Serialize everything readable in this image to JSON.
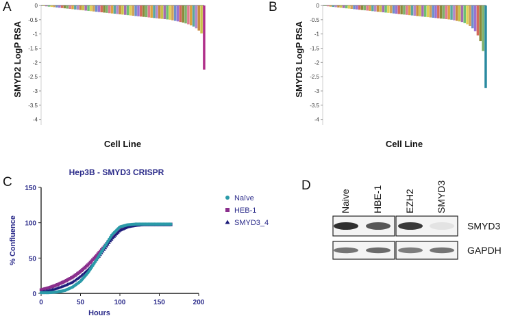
{
  "panels": {
    "a": {
      "letter": "A"
    },
    "b": {
      "letter": "B"
    },
    "c": {
      "letter": "C"
    },
    "d": {
      "letter": "D"
    }
  },
  "chart_data": [
    {
      "panel": "A",
      "type": "bar",
      "title": "",
      "xlabel": "Cell Line",
      "ylabel": "SMYD2 LogP RSA",
      "ylim": [
        -4.2,
        0
      ],
      "yticks": [
        "0",
        "-0.5",
        "-1",
        "-1.5",
        "-2",
        "-2.5",
        "-3",
        "-3.5",
        "-4"
      ],
      "description_values": "ranked waterfall of many cell lines; values fall from ~0 to about -1.0, last bar about -2.25",
      "values": [
        -0.02,
        -0.03,
        -0.04,
        -0.05,
        -0.06,
        -0.07,
        -0.08,
        -0.09,
        -0.1,
        -0.11,
        -0.12,
        -0.13,
        -0.14,
        -0.15,
        -0.16,
        -0.17,
        -0.18,
        -0.19,
        -0.2,
        -0.21,
        -0.22,
        -0.23,
        -0.24,
        -0.25,
        -0.26,
        -0.27,
        -0.28,
        -0.29,
        -0.3,
        -0.31,
        -0.32,
        -0.33,
        -0.34,
        -0.35,
        -0.36,
        -0.37,
        -0.38,
        -0.39,
        -0.4,
        -0.41,
        -0.42,
        -0.43,
        -0.44,
        -0.45,
        -0.46,
        -0.47,
        -0.48,
        -0.49,
        -0.5,
        -0.52,
        -0.54,
        -0.56,
        -0.58,
        -0.6,
        -0.63,
        -0.66,
        -0.7,
        -0.74,
        -0.8,
        -0.88,
        -0.98,
        -2.25
      ]
    },
    {
      "panel": "B",
      "type": "bar",
      "title": "",
      "xlabel": "Cell Line",
      "ylabel": "SMYD3 LogP RSA",
      "ylim": [
        -4.2,
        0
      ],
      "yticks": [
        "0",
        "-0.5",
        "-1",
        "-1.5",
        "-2",
        "-2.5",
        "-3",
        "-3.5",
        "-4"
      ],
      "values": [
        -0.02,
        -0.03,
        -0.04,
        -0.05,
        -0.06,
        -0.07,
        -0.08,
        -0.09,
        -0.1,
        -0.11,
        -0.12,
        -0.13,
        -0.14,
        -0.15,
        -0.16,
        -0.17,
        -0.18,
        -0.19,
        -0.2,
        -0.21,
        -0.22,
        -0.23,
        -0.24,
        -0.25,
        -0.26,
        -0.27,
        -0.28,
        -0.29,
        -0.3,
        -0.31,
        -0.32,
        -0.33,
        -0.34,
        -0.35,
        -0.36,
        -0.37,
        -0.38,
        -0.39,
        -0.4,
        -0.41,
        -0.42,
        -0.43,
        -0.44,
        -0.45,
        -0.46,
        -0.47,
        -0.48,
        -0.49,
        -0.5,
        -0.52,
        -0.54,
        -0.56,
        -0.58,
        -0.62,
        -0.66,
        -0.72,
        -0.8,
        -0.9,
        -1.05,
        -1.25,
        -1.6,
        -2.9
      ]
    },
    {
      "panel": "C",
      "type": "scatter",
      "title": "Hep3B - SMYD3 CRISPR",
      "xlabel": "Hours",
      "ylabel": "% Confluence",
      "xlim": [
        0,
        200
      ],
      "ylim": [
        0,
        150
      ],
      "xticks": [
        "0",
        "50",
        "100",
        "150",
        "200"
      ],
      "yticks": [
        "0",
        "50",
        "100",
        "150"
      ],
      "legend_position": "right",
      "series": [
        {
          "name": "Naïve",
          "color": "#2a9aa8",
          "marker": "circle",
          "x": [
            0,
            10,
            20,
            30,
            40,
            50,
            60,
            70,
            80,
            90,
            100,
            110,
            120,
            130,
            140,
            150,
            160,
            166
          ],
          "y": [
            1,
            1,
            2,
            4,
            9,
            17,
            30,
            47,
            65,
            83,
            94,
            97,
            98,
            98,
            98,
            98,
            98,
            98
          ]
        },
        {
          "name": "HEB-1",
          "color": "#8a2e8c",
          "marker": "square",
          "x": [
            0,
            10,
            20,
            30,
            40,
            50,
            60,
            70,
            80,
            90,
            100,
            110,
            120,
            130,
            140,
            150,
            160,
            166
          ],
          "y": [
            5,
            8,
            12,
            17,
            23,
            31,
            41,
            53,
            66,
            80,
            90,
            95,
            97,
            98,
            98,
            98,
            98,
            98
          ]
        },
        {
          "name": "SMYD3_4",
          "color": "#1c1c7a",
          "marker": "triangle",
          "x": [
            0,
            10,
            20,
            30,
            40,
            50,
            60,
            70,
            80,
            90,
            100,
            110,
            120,
            130,
            140,
            150,
            160,
            166
          ],
          "y": [
            2,
            4,
            7,
            11,
            16,
            24,
            34,
            47,
            62,
            77,
            89,
            94,
            96,
            97,
            97,
            97,
            97,
            97
          ]
        }
      ]
    }
  ],
  "blot": {
    "lanes": [
      "Naive",
      "HBE-1",
      "EZH2",
      "SMYD3"
    ],
    "rows": [
      {
        "label": "SMYD3",
        "intensities": [
          0.95,
          0.75,
          0.9,
          0.05
        ]
      },
      {
        "label": "GAPDH",
        "intensities": [
          0.6,
          0.65,
          0.55,
          0.6
        ]
      }
    ]
  }
}
